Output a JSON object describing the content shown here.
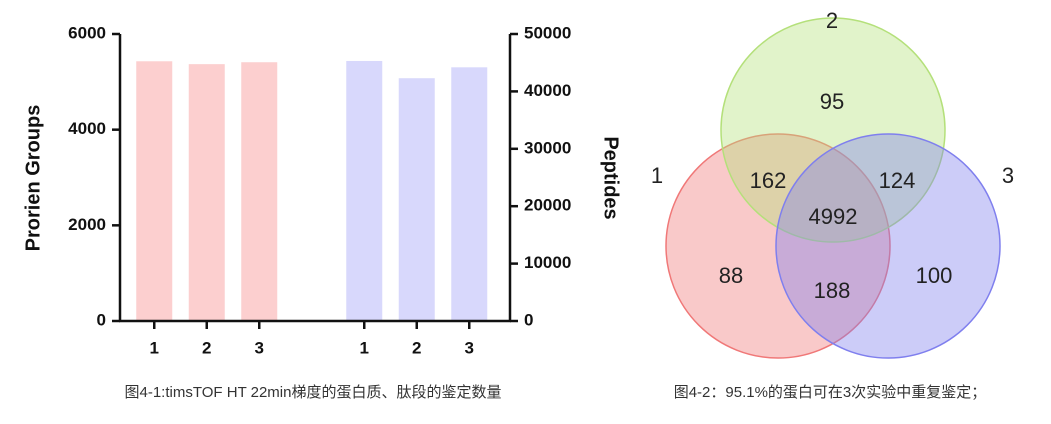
{
  "chart_data": [
    {
      "type": "bar",
      "y_label": "Prorien Groups",
      "y2_label": "Peptides",
      "caption": "图4-1:timsTOF HT  22min梯度的蛋白质、肽段的鉴定数量",
      "categories": [
        "1",
        "2",
        "3",
        null,
        "1",
        "2",
        "3"
      ],
      "series": [
        {
          "color": "#fccfcf",
          "values": [
            5430,
            5370,
            5410,
            null,
            null,
            null,
            null
          ]
        },
        {
          "color": "#d8d8fc",
          "axis": "y2",
          "values": [
            null,
            null,
            null,
            null,
            45300,
            42300,
            44200
          ]
        }
      ],
      "ylim": [
        0,
        6000
      ],
      "yticks": [
        0,
        2000,
        4000,
        6000
      ],
      "y2lim": [
        0,
        50000
      ],
      "y2ticks": [
        0,
        10000,
        20000,
        30000,
        40000,
        50000
      ],
      "grid": false
    },
    {
      "type": "venn",
      "caption": "图4-2：95.1%的蛋白可在3次实验中重复鉴定；",
      "sets": [
        {
          "label": "1",
          "color": "#f07878"
        },
        {
          "label": "2",
          "color": "#b4e07a"
        },
        {
          "label": "3",
          "color": "#7f7fee"
        }
      ],
      "values": [
        95,
        162,
        124,
        4992,
        88,
        188,
        100
      ]
    }
  ]
}
